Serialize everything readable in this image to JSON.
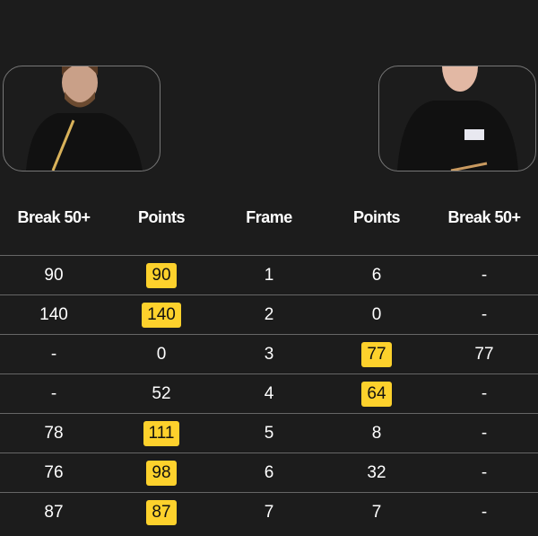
{
  "headers": [
    "Break 50+",
    "Points",
    "Frame",
    "Points",
    "Break 50+"
  ],
  "colors": {
    "highlight": "#fdd12c",
    "background": "#1c1c1c"
  },
  "rows": [
    {
      "b1": "90",
      "p1": "90",
      "frame": "1",
      "p2": "6",
      "b2": "-",
      "winner": "left"
    },
    {
      "b1": "140",
      "p1": "140",
      "frame": "2",
      "p2": "0",
      "b2": "-",
      "winner": "left"
    },
    {
      "b1": "-",
      "p1": "0",
      "frame": "3",
      "p2": "77",
      "b2": "77",
      "winner": "right"
    },
    {
      "b1": "-",
      "p1": "52",
      "frame": "4",
      "p2": "64",
      "b2": "-",
      "winner": "right"
    },
    {
      "b1": "78",
      "p1": "111",
      "frame": "5",
      "p2": "8",
      "b2": "-",
      "winner": "left"
    },
    {
      "b1": "76",
      "p1": "98",
      "frame": "6",
      "p2": "32",
      "b2": "-",
      "winner": "left"
    },
    {
      "b1": "87",
      "p1": "87",
      "frame": "7",
      "p2": "7",
      "b2": "-",
      "winner": "left"
    }
  ]
}
